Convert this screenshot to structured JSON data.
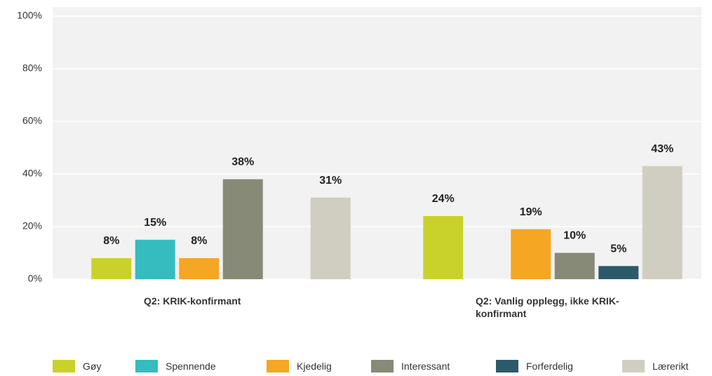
{
  "chart_data": {
    "type": "bar",
    "categories": [
      "Q2: KRIK-konfirmant",
      "Q2: Vanlig opplegg, ikke KRIK-konfirmant"
    ],
    "series": [
      {
        "name": "Gøy",
        "color": "#c9d22a",
        "values": [
          8,
          24
        ],
        "value_labels": [
          "8%",
          "24%"
        ]
      },
      {
        "name": "Spennende",
        "color": "#35bcbf",
        "values": [
          15,
          null
        ],
        "value_labels": [
          "15%",
          null
        ]
      },
      {
        "name": "Kjedelig",
        "color": "#f5a623",
        "values": [
          8,
          19
        ],
        "value_labels": [
          "8%",
          "19%"
        ]
      },
      {
        "name": "Interessant",
        "color": "#868a76",
        "values": [
          38,
          10
        ],
        "value_labels": [
          "38%",
          "10%"
        ]
      },
      {
        "name": "Forferdelig",
        "color": "#2d5a6b",
        "values": [
          null,
          5
        ],
        "value_labels": [
          null,
          "5%"
        ]
      },
      {
        "name": "Lærerikt",
        "color": "#d0cec0",
        "values": [
          31,
          43
        ],
        "value_labels": [
          "31%",
          "43%"
        ]
      }
    ],
    "ylim": [
      0,
      100
    ],
    "yticks": [
      {
        "value": 0,
        "label": "0%"
      },
      {
        "value": 20,
        "label": "20%"
      },
      {
        "value": 40,
        "label": "40%"
      },
      {
        "value": 60,
        "label": "60%"
      },
      {
        "value": 80,
        "label": "80%"
      },
      {
        "value": 100,
        "label": "100%"
      }
    ],
    "grid": true
  }
}
